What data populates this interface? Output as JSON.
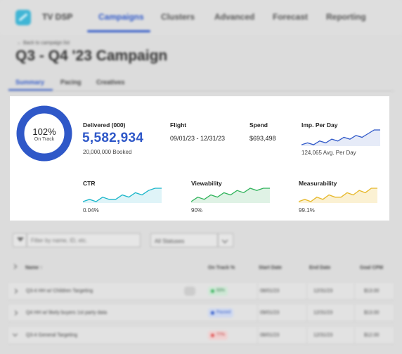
{
  "app": {
    "name": "TV DSP"
  },
  "nav": {
    "items": [
      "Campaigns",
      "Clusters",
      "Advanced",
      "Forecast",
      "Reporting"
    ],
    "active": "Campaigns"
  },
  "page": {
    "back_link": "← Back to campaign list",
    "title": "Q3 - Q4 '23 Campaign"
  },
  "subtabs": [
    "Summary",
    "Pacing",
    "Creatives"
  ],
  "summary": {
    "donut": {
      "percent_label": "102%",
      "status": "On Track",
      "fraction": 1.0,
      "color": "#2f58c8"
    },
    "delivered": {
      "label": "Delivered (000)",
      "value": "5,582,934",
      "booked": "20,000,000 Booked"
    },
    "flight": {
      "label": "Flight",
      "value": "09/01/23 - 12/31/23"
    },
    "spend": {
      "label": "Spend",
      "value": "$693,498"
    },
    "imp_per_day": {
      "label": "Imp. Per Day",
      "value": "124,065 Avg. Per Day",
      "color": "#2f58c8",
      "fill": "#e6ebf8",
      "trend": [
        3,
        4,
        3,
        5,
        4,
        6,
        5,
        7,
        6,
        8,
        7,
        9,
        11,
        11
      ]
    },
    "ctr": {
      "label": "CTR",
      "value": "0.04%",
      "color": "#18b5c9",
      "fill": "#dff4f8",
      "trend": [
        2,
        3,
        2,
        4,
        3,
        3,
        5,
        4,
        6,
        5,
        7,
        8,
        8
      ]
    },
    "viewability": {
      "label": "Viewability",
      "value": "90%",
      "color": "#2fb35a",
      "fill": "#dff2e5",
      "trend": [
        2,
        4,
        3,
        5,
        4,
        6,
        5,
        7,
        6,
        8,
        7,
        8,
        8
      ]
    },
    "measurability": {
      "label": "Measurability",
      "value": "99.1%",
      "color": "#e6b82a",
      "fill": "#fbf1d3",
      "trend": [
        2,
        3,
        2,
        4,
        3,
        5,
        4,
        4,
        6,
        5,
        7,
        6,
        8,
        8
      ]
    }
  },
  "filters": {
    "search_placeholder": "Filter by name, ID, etc.",
    "status_value": "All Statuses"
  },
  "table": {
    "headers": [
      "Name ↑",
      "On Track %",
      "Start Date",
      "End Date",
      "Goal CPM"
    ],
    "rows": [
      {
        "name": "Q3-4 HH w/ Children Targeting",
        "tag": " ",
        "status": "93%",
        "status_color": "green",
        "start": "08/01/23",
        "end": "12/31/23",
        "cpm": "$13.00",
        "expanded": false
      },
      {
        "name": "Q4 HH w/ likely buyers 1st party data",
        "tag": "",
        "status": "Paused",
        "status_color": "blue",
        "start": "09/01/23",
        "end": "12/31/23",
        "cpm": "$13.00",
        "expanded": false
      },
      {
        "name": "Q3-4 General Targeting",
        "tag": "",
        "status": "77%",
        "status_color": "red",
        "start": "08/01/23",
        "end": "12/31/23",
        "cpm": "$12.00",
        "expanded": true
      }
    ]
  }
}
